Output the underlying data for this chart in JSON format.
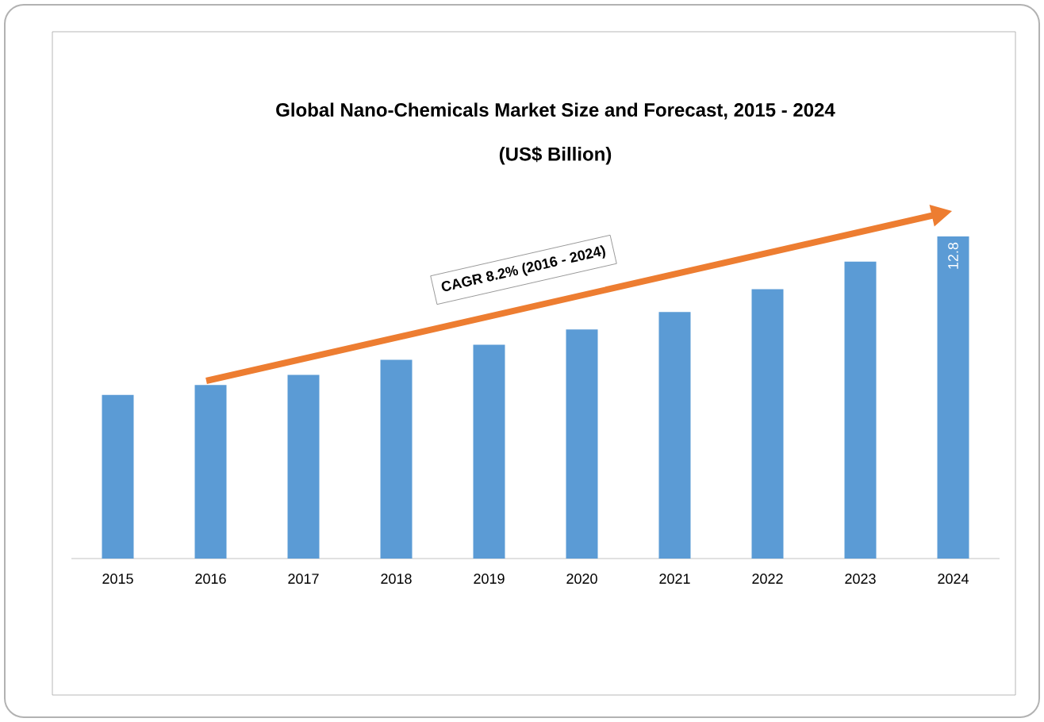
{
  "chart_data": {
    "type": "bar",
    "title": "Global Nano-Chemicals Market Size and Forecast, 2015 - 2024",
    "subtitle": "(US$ Billion)",
    "categories": [
      "2015",
      "2016",
      "2017",
      "2018",
      "2019",
      "2020",
      "2021",
      "2022",
      "2023",
      "2024"
    ],
    "values": [
      6.5,
      6.9,
      7.3,
      7.9,
      8.5,
      9.1,
      9.8,
      10.7,
      11.8,
      12.8
    ],
    "value_labels": [
      null,
      null,
      null,
      null,
      null,
      null,
      null,
      null,
      null,
      "12.8"
    ],
    "color": "#5b9bd5",
    "annotations": [
      "CAGR 8.2% (2016 - 2024)"
    ]
  }
}
